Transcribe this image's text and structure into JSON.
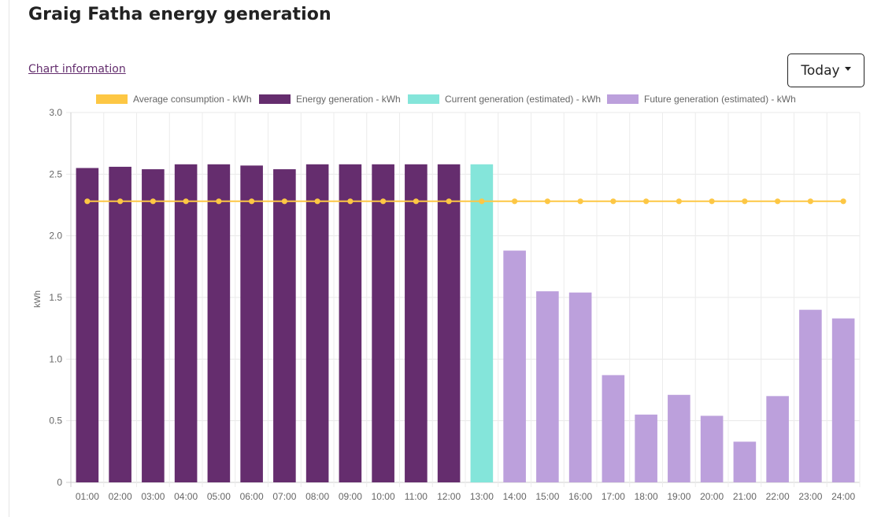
{
  "page": {
    "title": "Graig Fatha energy generation",
    "chart_info_link": "Chart information",
    "period_select": {
      "selected": "Today"
    }
  },
  "colors": {
    "average": "#fdc744",
    "generation": "#652d6e",
    "current": "#84e5da",
    "future": "#bca0dc"
  },
  "chart_data": {
    "type": "bar",
    "title": "",
    "xlabel": "",
    "ylabel": "kWh",
    "ylim": [
      0,
      3.0
    ],
    "yticks": [
      "0",
      "0.5",
      "1.0",
      "1.5",
      "2.0",
      "2.5",
      "3.0"
    ],
    "categories": [
      "01:00",
      "02:00",
      "03:00",
      "04:00",
      "05:00",
      "06:00",
      "07:00",
      "08:00",
      "09:00",
      "10:00",
      "11:00",
      "12:00",
      "13:00",
      "14:00",
      "15:00",
      "16:00",
      "17:00",
      "18:00",
      "19:00",
      "20:00",
      "21:00",
      "22:00",
      "23:00",
      "24:00"
    ],
    "legend": [
      {
        "label": "Average consumption - kWh",
        "color": "#fdc744"
      },
      {
        "label": "Energy generation - kWh",
        "color": "#652d6e"
      },
      {
        "label": "Current generation (estimated) - kWh",
        "color": "#84e5da"
      },
      {
        "label": "Future generation (estimated) - kWh",
        "color": "#bca0dc"
      }
    ],
    "series": [
      {
        "name": "Average consumption - kWh",
        "type": "line",
        "values": [
          2.28,
          2.28,
          2.28,
          2.28,
          2.28,
          2.28,
          2.28,
          2.28,
          2.28,
          2.28,
          2.28,
          2.28,
          2.28,
          2.28,
          2.28,
          2.28,
          2.28,
          2.28,
          2.28,
          2.28,
          2.28,
          2.28,
          2.28,
          2.28
        ]
      },
      {
        "name": "Energy generation - kWh",
        "type": "bar",
        "values": [
          2.55,
          2.56,
          2.54,
          2.58,
          2.58,
          2.57,
          2.54,
          2.58,
          2.58,
          2.58,
          2.58,
          2.58,
          null,
          null,
          null,
          null,
          null,
          null,
          null,
          null,
          null,
          null,
          null,
          null
        ]
      },
      {
        "name": "Current generation (estimated) - kWh",
        "type": "bar",
        "values": [
          null,
          null,
          null,
          null,
          null,
          null,
          null,
          null,
          null,
          null,
          null,
          null,
          2.58,
          null,
          null,
          null,
          null,
          null,
          null,
          null,
          null,
          null,
          null,
          null
        ]
      },
      {
        "name": "Future generation (estimated) - kWh",
        "type": "bar",
        "values": [
          null,
          null,
          null,
          null,
          null,
          null,
          null,
          null,
          null,
          null,
          null,
          null,
          null,
          1.88,
          1.55,
          1.54,
          0.87,
          0.55,
          0.71,
          0.54,
          0.33,
          0.7,
          1.4,
          1.33
        ]
      }
    ]
  }
}
